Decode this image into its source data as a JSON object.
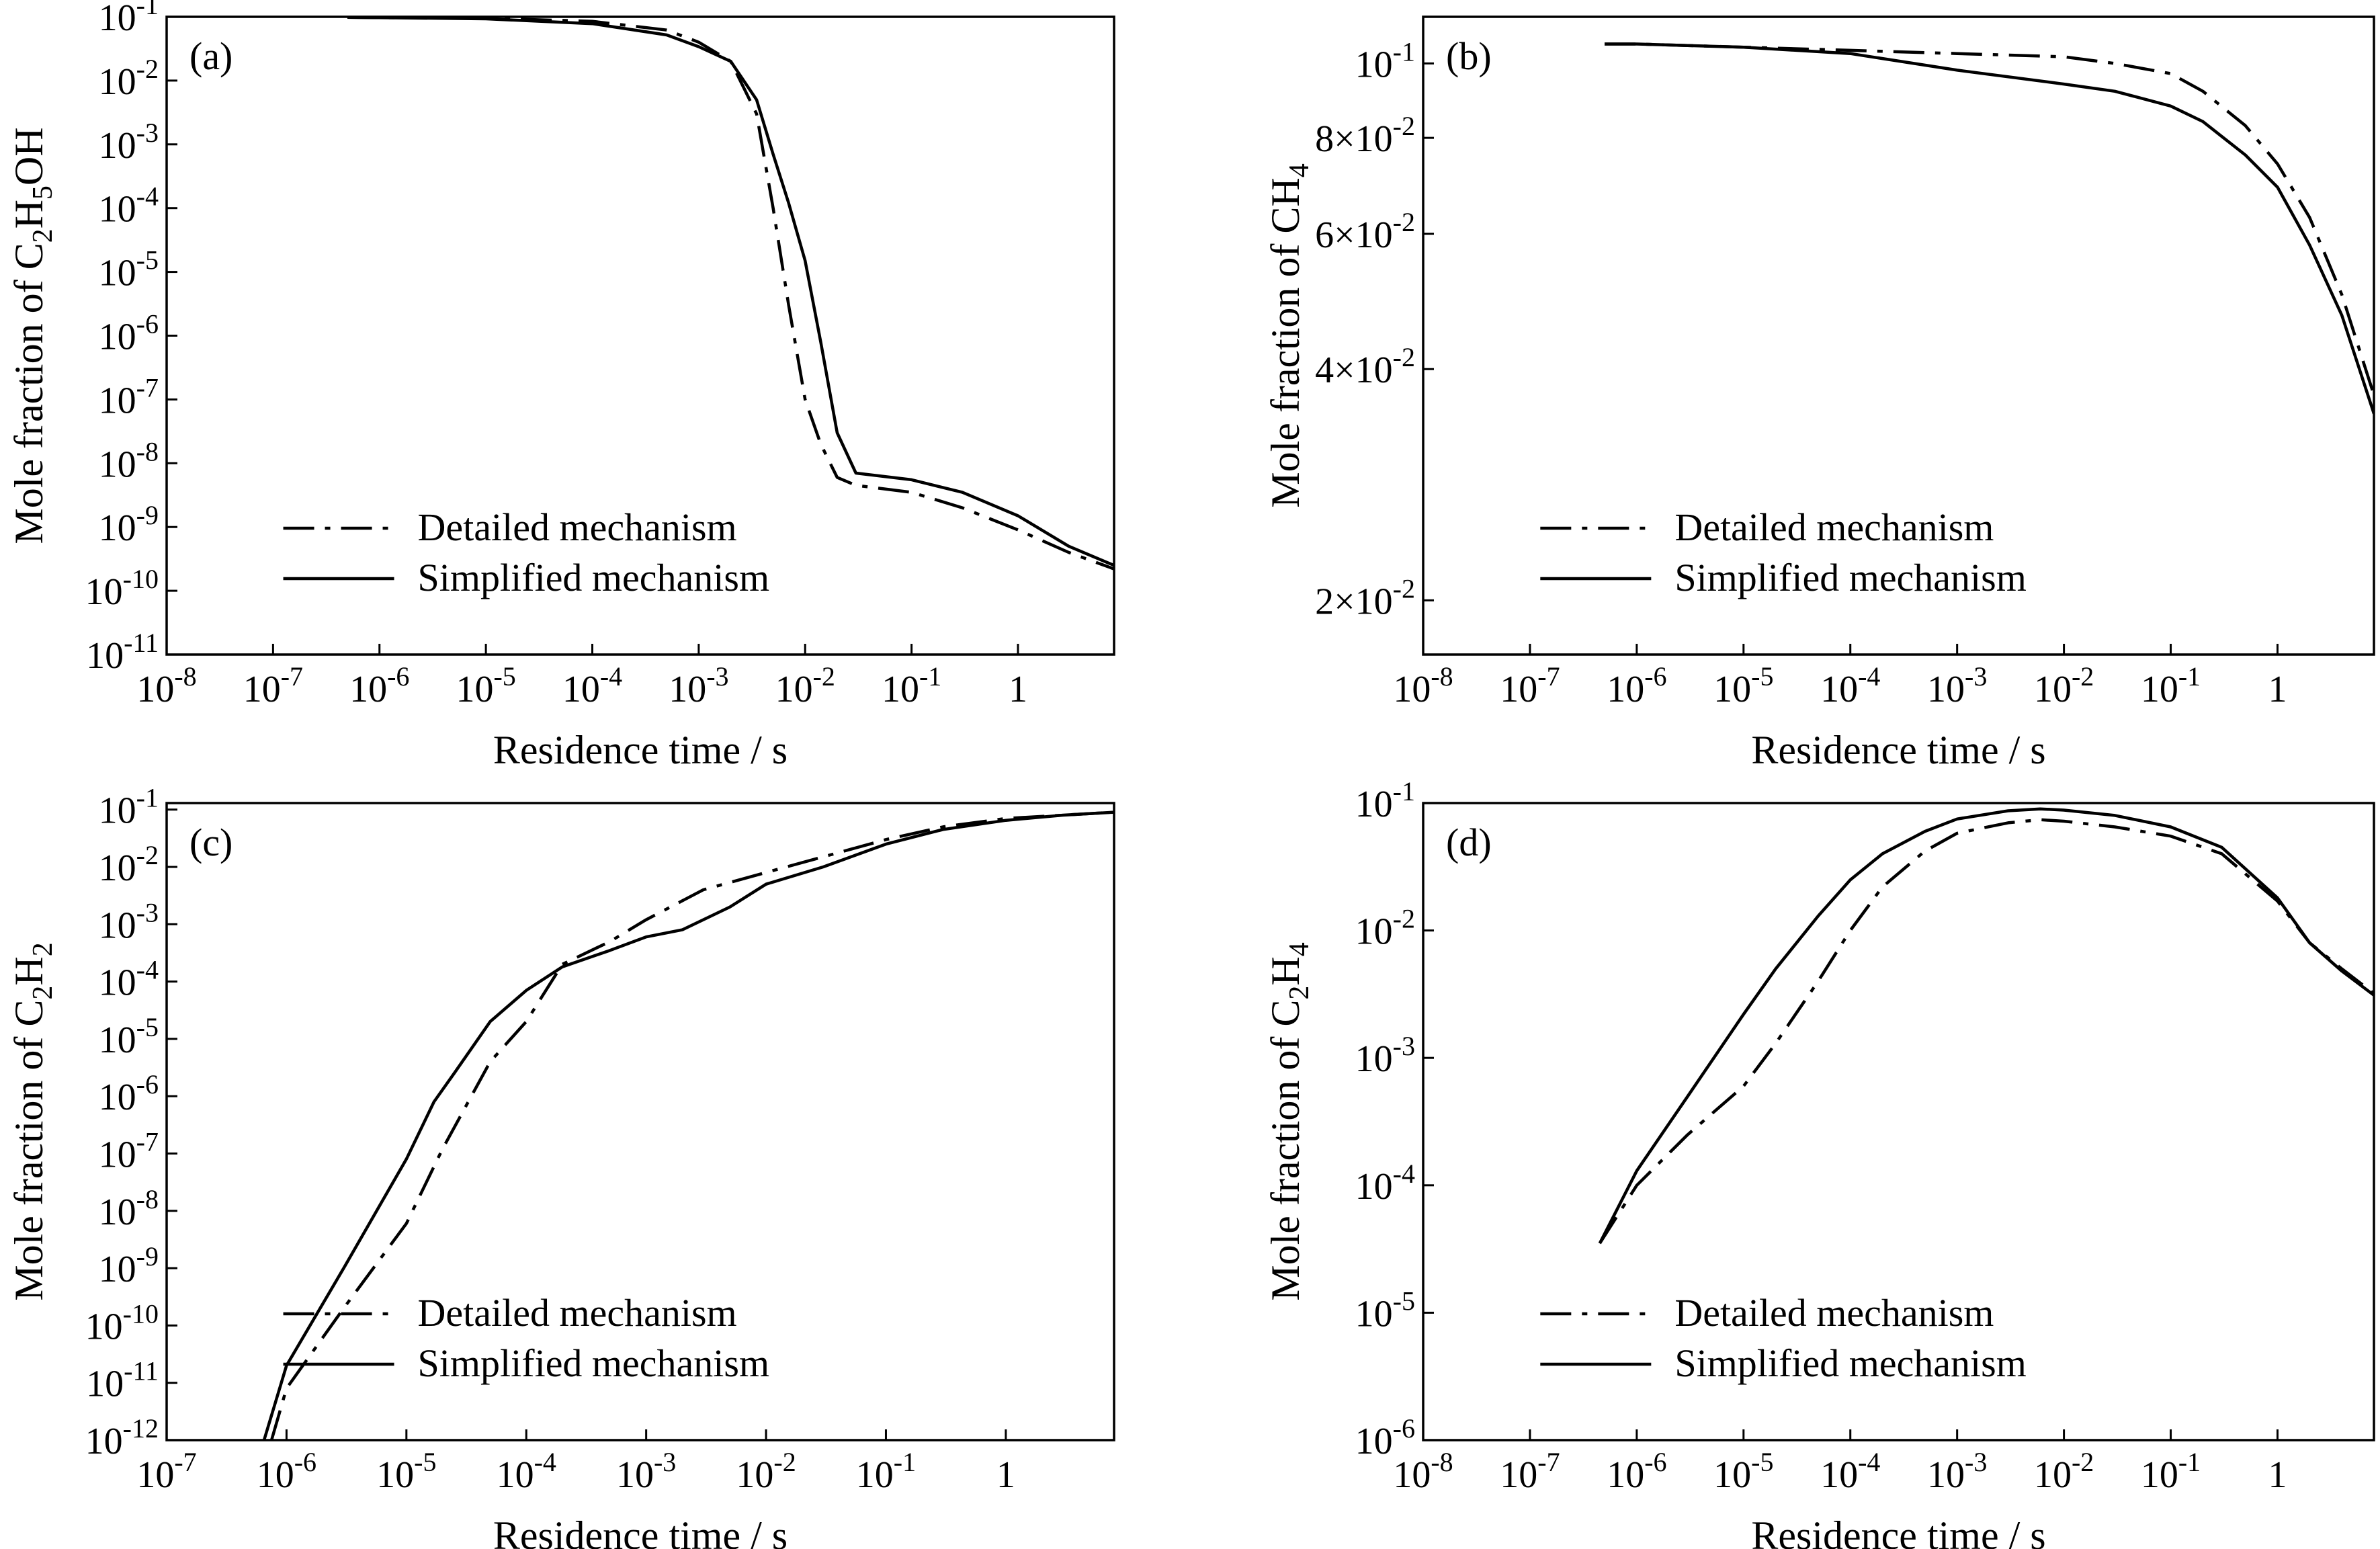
{
  "chart_data": [
    {
      "type": "line",
      "panel_label": "(a)",
      "xlabel": "Residence time / s",
      "ylabel_parts": [
        [
          "Mole fraction of C",
          ""
        ],
        [
          "2",
          "sub"
        ],
        [
          "H",
          ""
        ],
        [
          "5",
          "sub"
        ],
        [
          "OH",
          ""
        ]
      ],
      "xscale": "log",
      "yscale": "log",
      "xlim": [
        1e-08,
        8
      ],
      "ylim": [
        1e-11,
        0.1
      ],
      "xticks": [
        {
          "v": 1e-08,
          "b": "10",
          "e": "-8"
        },
        {
          "v": 1e-07,
          "b": "10",
          "e": "-7"
        },
        {
          "v": 1e-06,
          "b": "10",
          "e": "-6"
        },
        {
          "v": 1e-05,
          "b": "10",
          "e": "-5"
        },
        {
          "v": 0.0001,
          "b": "10",
          "e": "-4"
        },
        {
          "v": 0.001,
          "b": "10",
          "e": "-3"
        },
        {
          "v": 0.01,
          "b": "10",
          "e": "-2"
        },
        {
          "v": 0.1,
          "b": "10",
          "e": "-1"
        },
        {
          "v": 1,
          "b": "1",
          "e": ""
        }
      ],
      "yticks": [
        {
          "v": 0.1,
          "b": "10",
          "e": "-1"
        },
        {
          "v": 0.01,
          "b": "10",
          "e": "-2"
        },
        {
          "v": 0.001,
          "b": "10",
          "e": "-3"
        },
        {
          "v": 0.0001,
          "b": "10",
          "e": "-4"
        },
        {
          "v": 1e-05,
          "b": "10",
          "e": "-5"
        },
        {
          "v": 1e-06,
          "b": "10",
          "e": "-6"
        },
        {
          "v": 1e-07,
          "b": "10",
          "e": "-7"
        },
        {
          "v": 1e-08,
          "b": "10",
          "e": "-8"
        },
        {
          "v": 1e-09,
          "b": "10",
          "e": "-9"
        },
        {
          "v": 1e-10,
          "b": "10",
          "e": "-10"
        },
        {
          "v": 1e-11,
          "b": "10",
          "e": "-11"
        }
      ],
      "legend_placement": "bottom-right",
      "series": [
        {
          "name": "Detailed mechanism",
          "style": "dashdot",
          "x": [
            5e-07,
            1e-06,
            1e-05,
            0.0001,
            0.0005,
            0.001,
            0.002,
            0.0035,
            0.005,
            0.007,
            0.01,
            0.014,
            0.02,
            0.03,
            0.1,
            0.3,
            1,
            3,
            8
          ],
          "y": [
            0.098,
            0.097,
            0.095,
            0.085,
            0.062,
            0.04,
            0.02,
            0.003,
            0.0001,
            3e-06,
            1e-07,
            2e-08,
            6e-09,
            4.5e-09,
            3.5e-09,
            2e-09,
            9e-10,
            4e-10,
            2.2e-10
          ]
        },
        {
          "name": "Simplified mechanism",
          "style": "solid",
          "x": [
            5e-07,
            1e-06,
            1e-05,
            0.0001,
            0.0005,
            0.001,
            0.002,
            0.0035,
            0.005,
            0.007,
            0.01,
            0.014,
            0.02,
            0.03,
            0.1,
            0.3,
            1,
            3,
            8
          ],
          "y": [
            0.098,
            0.097,
            0.093,
            0.078,
            0.052,
            0.034,
            0.02,
            0.005,
            0.0007,
            0.00012,
            1.5e-05,
            8e-07,
            3e-08,
            7e-09,
            5.5e-09,
            3.5e-09,
            1.5e-09,
            5e-10,
            2.5e-10
          ]
        }
      ]
    },
    {
      "type": "line",
      "panel_label": "(b)",
      "xlabel": "Residence time / s",
      "ylabel_parts": [
        [
          "Mole fraction of CH",
          ""
        ],
        [
          "4",
          "sub"
        ]
      ],
      "xscale": "log",
      "yscale": "log",
      "xlim": [
        1e-08,
        8
      ],
      "ylim": [
        0.017,
        0.115
      ],
      "xticks": [
        {
          "v": 1e-08,
          "b": "10",
          "e": "-8"
        },
        {
          "v": 1e-07,
          "b": "10",
          "e": "-7"
        },
        {
          "v": 1e-06,
          "b": "10",
          "e": "-6"
        },
        {
          "v": 1e-05,
          "b": "10",
          "e": "-5"
        },
        {
          "v": 0.0001,
          "b": "10",
          "e": "-4"
        },
        {
          "v": 0.001,
          "b": "10",
          "e": "-3"
        },
        {
          "v": 0.01,
          "b": "10",
          "e": "-2"
        },
        {
          "v": 0.1,
          "b": "10",
          "e": "-1"
        },
        {
          "v": 1,
          "b": "1",
          "e": ""
        }
      ],
      "yticks": [
        {
          "v": 0.1,
          "b": "10",
          "e": "-1"
        },
        {
          "v": 0.08,
          "b": "8×10",
          "e": "-2"
        },
        {
          "v": 0.06,
          "b": "6×10",
          "e": "-2"
        },
        {
          "v": 0.04,
          "b": "4×10",
          "e": "-2"
        },
        {
          "v": 0.02,
          "b": "2×10",
          "e": "-2"
        }
      ],
      "legend_placement": "bottom-right",
      "series": [
        {
          "name": "Detailed mechanism",
          "style": "dashdot",
          "x": [
            5e-07,
            1e-06,
            1e-05,
            0.0001,
            0.001,
            0.01,
            0.03,
            0.1,
            0.2,
            0.5,
            1,
            2,
            4,
            8
          ],
          "y": [
            0.106,
            0.106,
            0.105,
            0.104,
            0.103,
            0.102,
            0.1,
            0.097,
            0.092,
            0.083,
            0.074,
            0.063,
            0.05,
            0.037
          ]
        },
        {
          "name": "Simplified mechanism",
          "style": "solid",
          "x": [
            5e-07,
            1e-06,
            1e-05,
            0.0001,
            0.001,
            0.01,
            0.03,
            0.1,
            0.2,
            0.5,
            1,
            2,
            4,
            8
          ],
          "y": [
            0.106,
            0.106,
            0.105,
            0.103,
            0.098,
            0.094,
            0.092,
            0.088,
            0.084,
            0.076,
            0.069,
            0.058,
            0.047,
            0.035
          ]
        }
      ]
    },
    {
      "type": "line",
      "panel_label": "(c)",
      "xlabel": "Residence time / s",
      "ylabel_parts": [
        [
          "Mole fraction of C",
          ""
        ],
        [
          "2",
          "sub"
        ],
        [
          "H",
          ""
        ],
        [
          "2",
          "sub"
        ]
      ],
      "xscale": "log",
      "yscale": "log",
      "xlim": [
        1e-07,
        8
      ],
      "ylim": [
        1e-12,
        0.13
      ],
      "xticks": [
        {
          "v": 1e-07,
          "b": "10",
          "e": "-7"
        },
        {
          "v": 1e-06,
          "b": "10",
          "e": "-6"
        },
        {
          "v": 1e-05,
          "b": "10",
          "e": "-5"
        },
        {
          "v": 0.0001,
          "b": "10",
          "e": "-4"
        },
        {
          "v": 0.001,
          "b": "10",
          "e": "-3"
        },
        {
          "v": 0.01,
          "b": "10",
          "e": "-2"
        },
        {
          "v": 0.1,
          "b": "10",
          "e": "-1"
        },
        {
          "v": 1,
          "b": "1",
          "e": ""
        }
      ],
      "yticks": [
        {
          "v": 0.1,
          "b": "10",
          "e": "-1"
        },
        {
          "v": 0.01,
          "b": "10",
          "e": "-2"
        },
        {
          "v": 0.001,
          "b": "10",
          "e": "-3"
        },
        {
          "v": 0.0001,
          "b": "10",
          "e": "-4"
        },
        {
          "v": 1e-05,
          "b": "10",
          "e": "-5"
        },
        {
          "v": 1e-06,
          "b": "10",
          "e": "-6"
        },
        {
          "v": 1e-07,
          "b": "10",
          "e": "-7"
        },
        {
          "v": 1e-08,
          "b": "10",
          "e": "-8"
        },
        {
          "v": 1e-09,
          "b": "10",
          "e": "-9"
        },
        {
          "v": 1e-10,
          "b": "10",
          "e": "-10"
        },
        {
          "v": 1e-11,
          "b": "10",
          "e": "-11"
        },
        {
          "v": 1e-12,
          "b": "10",
          "e": "-12"
        }
      ],
      "legend_placement": "bottom-right",
      "series": [
        {
          "name": "Detailed mechanism",
          "style": "dashdot",
          "x": [
            7.5e-07,
            1e-06,
            3e-06,
            1e-05,
            2e-05,
            5e-05,
            0.0001,
            0.0002,
            0.0005,
            0.001,
            0.003,
            0.01,
            0.03,
            0.1,
            0.3,
            1,
            3,
            8
          ],
          "y": [
            1e-12,
            8e-12,
            2e-10,
            6e-09,
            1.2e-07,
            4e-06,
            2e-05,
            0.0002,
            0.0005,
            0.0012,
            0.004,
            0.008,
            0.015,
            0.03,
            0.05,
            0.07,
            0.08,
            0.09
          ]
        },
        {
          "name": "Simplified mechanism",
          "style": "solid",
          "x": [
            6.5e-07,
            1e-06,
            3e-06,
            1e-05,
            1.7e-05,
            2.5e-05,
            5e-05,
            0.0001,
            0.0002,
            0.0005,
            0.001,
            0.002,
            0.005,
            0.01,
            0.03,
            0.1,
            0.3,
            1,
            3,
            8
          ],
          "y": [
            1e-12,
            2e-11,
            1e-09,
            8e-08,
            8e-07,
            2.5e-06,
            2e-05,
            7e-05,
            0.00018,
            0.00035,
            0.0006,
            0.0008,
            0.002,
            0.005,
            0.01,
            0.025,
            0.045,
            0.065,
            0.08,
            0.09
          ]
        }
      ]
    },
    {
      "type": "line",
      "panel_label": "(d)",
      "xlabel": "Residence time / s",
      "ylabel_parts": [
        [
          "Mole fraction of C",
          ""
        ],
        [
          "2",
          "sub"
        ],
        [
          "H",
          ""
        ],
        [
          "4",
          "sub"
        ]
      ],
      "xscale": "log",
      "yscale": "log",
      "xlim": [
        1e-08,
        8
      ],
      "ylim": [
        1e-06,
        0.1
      ],
      "xticks": [
        {
          "v": 1e-08,
          "b": "10",
          "e": "-8"
        },
        {
          "v": 1e-07,
          "b": "10",
          "e": "-7"
        },
        {
          "v": 1e-06,
          "b": "10",
          "e": "-6"
        },
        {
          "v": 1e-05,
          "b": "10",
          "e": "-5"
        },
        {
          "v": 0.0001,
          "b": "10",
          "e": "-4"
        },
        {
          "v": 0.001,
          "b": "10",
          "e": "-3"
        },
        {
          "v": 0.01,
          "b": "10",
          "e": "-2"
        },
        {
          "v": 0.1,
          "b": "10",
          "e": "-1"
        },
        {
          "v": 1,
          "b": "1",
          "e": ""
        }
      ],
      "yticks": [
        {
          "v": 0.1,
          "b": "10",
          "e": "-1"
        },
        {
          "v": 0.01,
          "b": "10",
          "e": "-2"
        },
        {
          "v": 0.001,
          "b": "10",
          "e": "-3"
        },
        {
          "v": 0.0001,
          "b": "10",
          "e": "-4"
        },
        {
          "v": 1e-05,
          "b": "10",
          "e": "-5"
        },
        {
          "v": 1e-06,
          "b": "10",
          "e": "-6"
        }
      ],
      "legend_placement": "bottom-right",
      "series": [
        {
          "name": "Detailed mechanism",
          "style": "dashdot",
          "x": [
            4.5e-07,
            1e-06,
            3e-06,
            1e-05,
            2e-05,
            5e-05,
            0.0001,
            0.0002,
            0.0005,
            0.001,
            0.003,
            0.006,
            0.01,
            0.03,
            0.1,
            0.3,
            1,
            2,
            4,
            8
          ],
          "y": [
            3.5e-05,
            0.0001,
            0.00025,
            0.0006,
            0.0013,
            0.004,
            0.01,
            0.022,
            0.042,
            0.058,
            0.07,
            0.074,
            0.072,
            0.065,
            0.055,
            0.04,
            0.017,
            0.008,
            0.005,
            0.0032
          ]
        },
        {
          "name": "Simplified mechanism",
          "style": "solid",
          "x": [
            4.5e-07,
            1e-06,
            3e-06,
            1e-05,
            2e-05,
            5e-05,
            0.0001,
            0.0002,
            0.0005,
            0.001,
            0.003,
            0.006,
            0.01,
            0.03,
            0.1,
            0.3,
            1,
            2,
            4,
            8
          ],
          "y": [
            3.5e-05,
            0.00013,
            0.0005,
            0.0022,
            0.005,
            0.013,
            0.025,
            0.04,
            0.06,
            0.075,
            0.087,
            0.09,
            0.088,
            0.08,
            0.065,
            0.045,
            0.018,
            0.008,
            0.0048,
            0.0031
          ]
        }
      ]
    }
  ]
}
